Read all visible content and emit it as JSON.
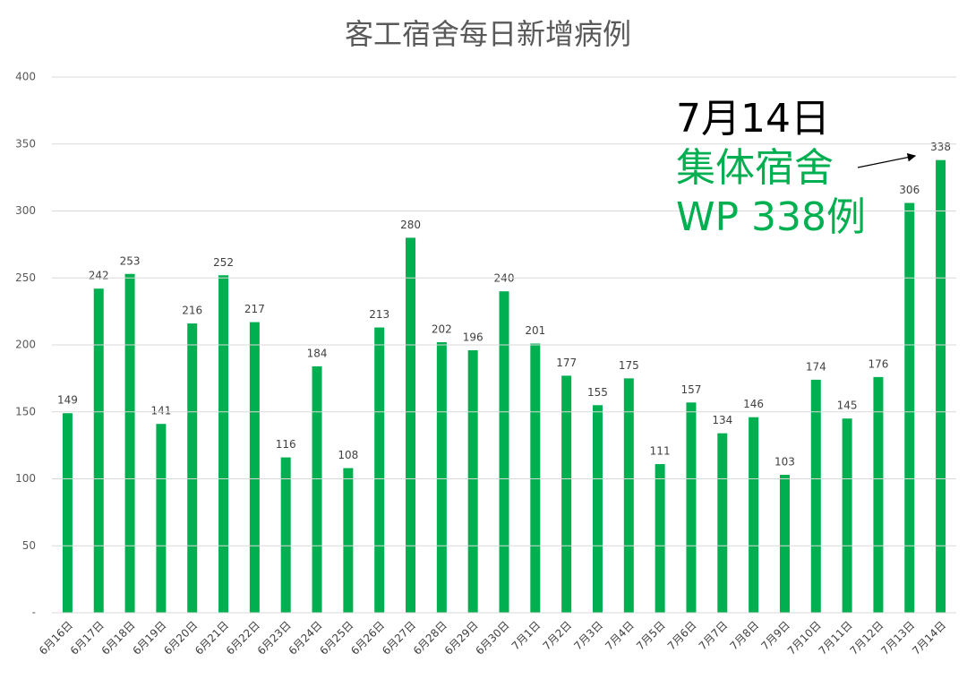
{
  "chart_data": {
    "type": "bar",
    "title": "客工宿舍每日新增病例",
    "categories": [
      "6月16日",
      "6月17日",
      "6月18日",
      "6月19日",
      "6月20日",
      "6月21日",
      "6月22日",
      "6月23日",
      "6月24日",
      "6月25日",
      "6月26日",
      "6月27日",
      "6月28日",
      "6月29日",
      "6月30日",
      "7月1日",
      "7月2日",
      "7月3日",
      "7月4日",
      "7月5日",
      "7月6日",
      "7月7日",
      "7月8日",
      "7月9日",
      "7月10日",
      "7月11日",
      "7月12日",
      "7月13日",
      "7月14日"
    ],
    "values": [
      149,
      242,
      253,
      141,
      216,
      252,
      217,
      116,
      184,
      108,
      213,
      280,
      202,
      196,
      240,
      201,
      177,
      155,
      175,
      111,
      157,
      134,
      146,
      103,
      174,
      145,
      176,
      306,
      338
    ],
    "color": "#00b050",
    "ylim": [
      0,
      400
    ],
    "yticks": [
      {
        "value": 0,
        "label": "-"
      },
      50,
      100,
      150,
      200,
      250,
      300,
      350,
      400
    ],
    "grid": true,
    "annotations": [
      "7月14日",
      "集体宿舍",
      "WP 338例"
    ]
  }
}
